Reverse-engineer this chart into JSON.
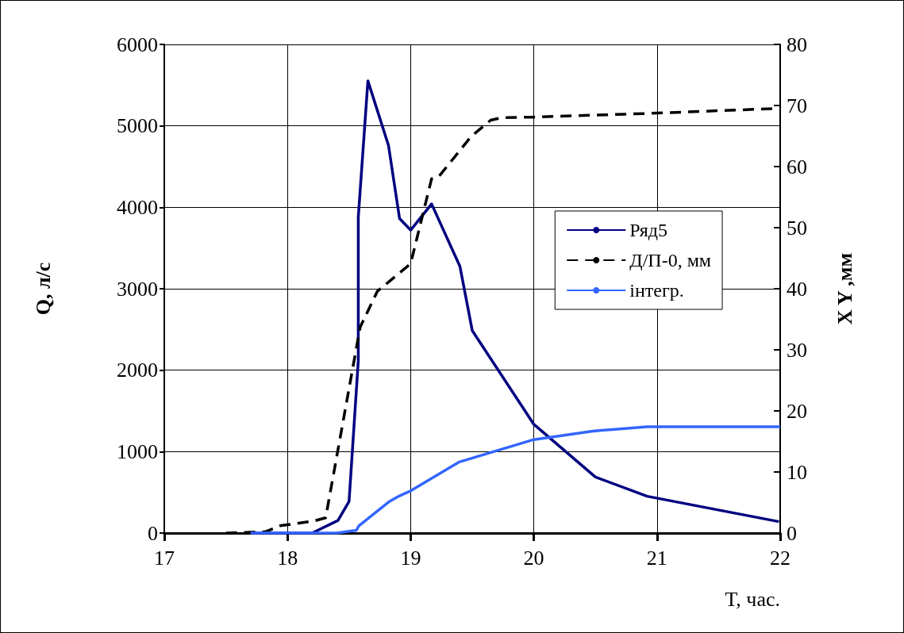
{
  "chart_data": {
    "type": "line",
    "xlabel": "T, час.",
    "ylabel": "Q, л/с",
    "y2label": "X Y ,мм",
    "xlim": [
      17,
      22
    ],
    "xticks": [
      17,
      18,
      19,
      20,
      21,
      22
    ],
    "ylim": [
      0,
      6000
    ],
    "yticks": [
      0,
      1000,
      2000,
      3000,
      4000,
      5000,
      6000
    ],
    "y2lim": [
      0,
      80
    ],
    "y2ticks": [
      0,
      10,
      20,
      30,
      40,
      50,
      60,
      70,
      80
    ],
    "grid": true,
    "legend": "right",
    "marker": "none",
    "series": [
      {
        "name": "Ряд5",
        "color": "#000080",
        "line_style": "solid",
        "x": [
          17.7,
          18.2,
          18.41,
          18.5,
          18.575,
          18.575,
          18.653,
          18.82,
          18.91,
          19.0,
          19.17,
          19.4,
          19.5,
          20.0,
          20.5,
          20.92,
          21.99
        ],
        "values": [
          0,
          0,
          155,
          388,
          2117,
          3880,
          5553,
          4761,
          3862,
          3720,
          4041,
          3275,
          2487,
          1335,
          688,
          452,
          140
        ]
      },
      {
        "name": "Д/П-0, мм",
        "color": "#000000",
        "line_style": "dashed",
        "axis": "y2",
        "x": [
          17.5,
          17.82,
          17.94,
          18.22,
          18.31,
          18.59,
          18.73,
          18.82,
          19.0,
          19.17,
          19.23,
          19.49,
          19.65,
          19.74,
          20.0,
          20.93,
          21.95
        ],
        "values": [
          0,
          0.2,
          1.2,
          2.0,
          2.5,
          33.7,
          39.6,
          41.1,
          44.1,
          58.0,
          58.4,
          64.9,
          67.6,
          68.0,
          68.1,
          68.7,
          69.5
        ]
      },
      {
        "name": "інтегр.",
        "color": "#3366ff",
        "line_style": "solid",
        "axis": "y2",
        "x": [
          17.7,
          18.4,
          18.56,
          18.58,
          18.83,
          18.91,
          19.0,
          19.39,
          20.0,
          20.48,
          20.92,
          22.0
        ],
        "values": [
          0,
          0,
          0.45,
          1.2,
          5.2,
          6.1,
          6.9,
          11.6,
          15.3,
          16.7,
          17.4,
          17.4
        ]
      }
    ]
  }
}
